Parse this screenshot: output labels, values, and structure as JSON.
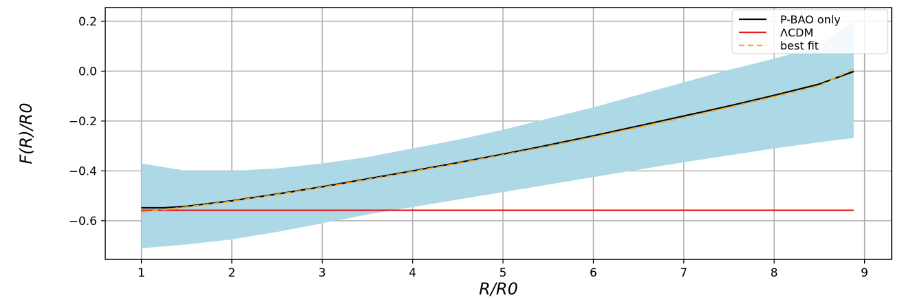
{
  "chart_data": {
    "type": "line",
    "title": "",
    "xlabel": "R/R0",
    "ylabel": "F(R)/R0",
    "xlim": [
      0.6,
      9.3
    ],
    "ylim": [
      -0.755,
      0.255
    ],
    "xticks": [
      1,
      2,
      3,
      4,
      5,
      6,
      7,
      8,
      9
    ],
    "xtick_labels": [
      "1",
      "2",
      "3",
      "4",
      "5",
      "6",
      "7",
      "8",
      "9"
    ],
    "yticks": [
      -0.6,
      -0.4,
      -0.2,
      0.0,
      0.2
    ],
    "ytick_labels": [
      "−0.6",
      "−0.4",
      "−0.2",
      "0.0",
      "0.2"
    ],
    "grid": true,
    "legend_position": "top-right",
    "band": {
      "color": "#add8e6",
      "x": [
        1,
        1.5,
        2,
        2.5,
        3,
        3.5,
        4,
        4.5,
        5,
        5.5,
        6,
        6.5,
        7,
        7.5,
        8,
        8.5,
        8.88
      ],
      "lower": [
        -0.71,
        -0.695,
        -0.675,
        -0.645,
        -0.61,
        -0.575,
        -0.545,
        -0.515,
        -0.485,
        -0.455,
        -0.425,
        -0.395,
        -0.365,
        -0.338,
        -0.31,
        -0.285,
        -0.268
      ],
      "upper": [
        -0.37,
        -0.4,
        -0.4,
        -0.39,
        -0.37,
        -0.345,
        -0.31,
        -0.275,
        -0.235,
        -0.19,
        -0.145,
        -0.095,
        -0.045,
        0.005,
        0.05,
        0.1,
        0.2
      ]
    },
    "series": [
      {
        "name": "P-BAO only",
        "color": "#000000",
        "style": "solid",
        "x": [
          1,
          1.25,
          1.5,
          2,
          2.5,
          3,
          3.5,
          4,
          4.5,
          5,
          5.5,
          6,
          6.5,
          7,
          7.5,
          8,
          8.5,
          8.88
        ],
        "y": [
          -0.548,
          -0.548,
          -0.542,
          -0.52,
          -0.493,
          -0.464,
          -0.432,
          -0.4,
          -0.367,
          -0.333,
          -0.297,
          -0.259,
          -0.22,
          -0.18,
          -0.14,
          -0.097,
          -0.052,
          -0.001
        ]
      },
      {
        "name": "ΛCDM",
        "color": "#e41a1c",
        "style": "solid",
        "x": [
          1,
          8.88
        ],
        "y": [
          -0.558,
          -0.558
        ]
      },
      {
        "name": "best fit",
        "color": "#f5a623",
        "style": "dashed",
        "x": [
          1,
          1.5,
          2,
          2.5,
          3,
          3.5,
          4,
          4.5,
          5,
          5.5,
          6,
          6.5,
          7,
          7.5,
          8,
          8.5,
          8.88
        ],
        "y": [
          -0.565,
          -0.545,
          -0.522,
          -0.495,
          -0.466,
          -0.435,
          -0.403,
          -0.37,
          -0.336,
          -0.301,
          -0.264,
          -0.225,
          -0.186,
          -0.145,
          -0.102,
          -0.058,
          0.008
        ]
      }
    ]
  }
}
